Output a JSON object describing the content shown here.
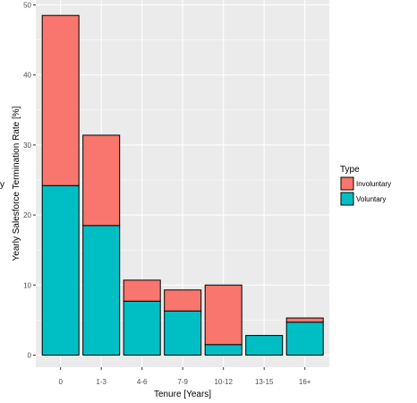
{
  "chart_data": {
    "type": "bar",
    "stacked": true,
    "xlabel": "Tenure [Years]",
    "ylabel": "Yearly Salesforce Termination Rate [%]",
    "ylim": [
      0,
      50
    ],
    "yticks": [
      0,
      10,
      20,
      30,
      40,
      50
    ],
    "grid": true,
    "categories": [
      "0",
      "1-3",
      "4-6",
      "7-9",
      "10-12",
      "13-15",
      "16+"
    ],
    "series": [
      {
        "name": "Voluntary",
        "color": "#00BFC4",
        "values": [
          24.2,
          18.5,
          7.7,
          6.3,
          1.5,
          2.8,
          4.7
        ]
      },
      {
        "name": "Involuntary",
        "color": "#F8766D",
        "values": [
          24.3,
          12.9,
          3.0,
          3.0,
          8.5,
          0,
          0.6
        ]
      }
    ],
    "legend": {
      "title": "Type",
      "placement": "right",
      "entries": [
        {
          "label": "Involuntary",
          "color": "#F8766D"
        },
        {
          "label": "Voluntary",
          "color": "#00BFC4"
        }
      ]
    },
    "cropped_text": "y"
  }
}
